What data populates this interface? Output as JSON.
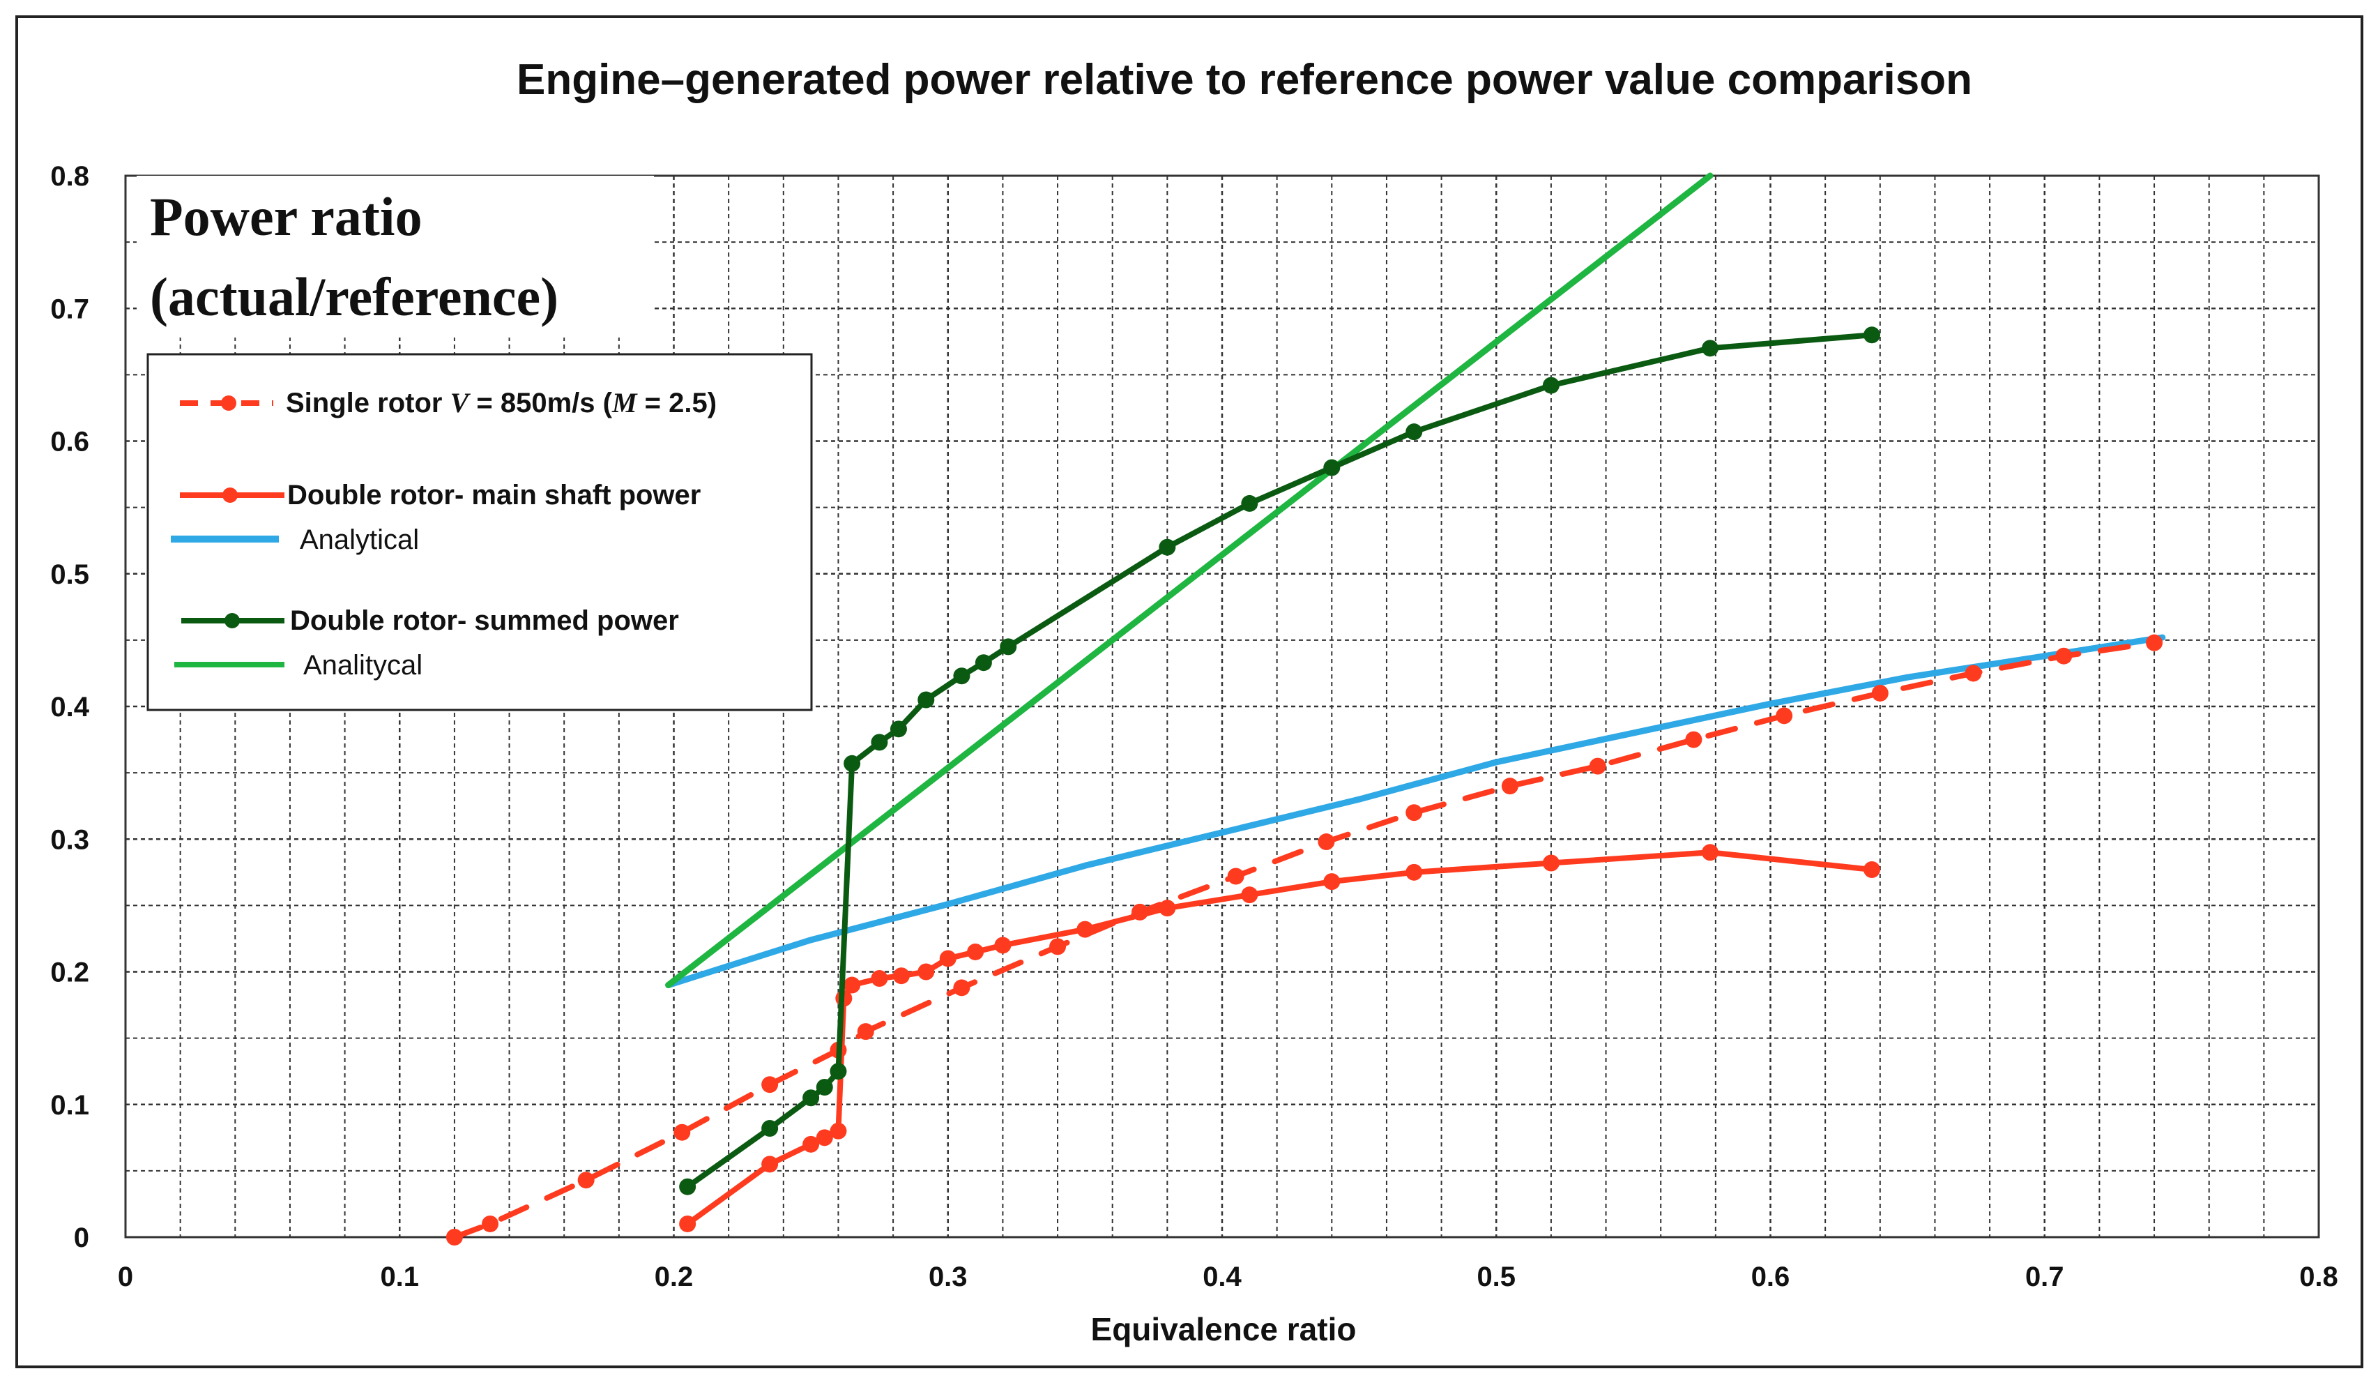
{
  "chart_data": {
    "type": "line",
    "title": "Engine–generated power relative to reference power value comparison",
    "xlabel": "Equivalence ratio",
    "ylabel_lines": [
      "Power ratio",
      "(actual/reference)"
    ],
    "xlim": [
      0,
      0.8
    ],
    "ylim": [
      0,
      0.8
    ],
    "xticks": [
      "0",
      "0.1",
      "0.2",
      "0.3",
      "0.4",
      "0.5",
      "0.6",
      "0.7",
      "0.8"
    ],
    "yticks": [
      "0",
      "0.1",
      "0.2",
      "0.3",
      "0.4",
      "0.5",
      "0.6",
      "0.7",
      "0.8"
    ],
    "grid": true,
    "legend_position": "upper-left",
    "series": [
      {
        "name": "Single rotor V = 850m/s (M = 2.5)",
        "legend_parts": [
          "Single rotor ",
          "V",
          " = 850m/s (",
          "M",
          " = 2.5)"
        ],
        "color": "#ff3b1f",
        "style": "dashed",
        "markers": true,
        "x": [
          0.12,
          0.133,
          0.168,
          0.203,
          0.235,
          0.26,
          0.27,
          0.305,
          0.34,
          0.37,
          0.405,
          0.438,
          0.47,
          0.505,
          0.537,
          0.572,
          0.605,
          0.64,
          0.674,
          0.707,
          0.74
        ],
        "y": [
          0.0,
          0.01,
          0.043,
          0.079,
          0.115,
          0.141,
          0.155,
          0.188,
          0.219,
          0.245,
          0.272,
          0.298,
          0.32,
          0.34,
          0.355,
          0.375,
          0.393,
          0.41,
          0.425,
          0.438,
          0.448
        ]
      },
      {
        "name": "Double rotor- main shaft power",
        "color": "#ff3b1f",
        "style": "solid",
        "markers": true,
        "x": [
          0.205,
          0.235,
          0.25,
          0.255,
          0.26,
          0.262,
          0.265,
          0.275,
          0.283,
          0.292,
          0.3,
          0.31,
          0.32,
          0.35,
          0.38,
          0.41,
          0.44,
          0.47,
          0.52,
          0.578,
          0.637
        ],
        "y": [
          0.01,
          0.055,
          0.07,
          0.075,
          0.08,
          0.18,
          0.19,
          0.195,
          0.197,
          0.2,
          0.21,
          0.215,
          0.22,
          0.232,
          0.248,
          0.258,
          0.268,
          0.275,
          0.282,
          0.29,
          0.277
        ]
      },
      {
        "name": "Analytical",
        "color": "#2fa8e6",
        "style": "solid",
        "markers": false,
        "x": [
          0.198,
          0.25,
          0.3,
          0.35,
          0.4,
          0.45,
          0.5,
          0.55,
          0.6,
          0.65,
          0.7,
          0.743
        ],
        "y": [
          0.19,
          0.224,
          0.251,
          0.28,
          0.305,
          0.33,
          0.358,
          0.38,
          0.402,
          0.422,
          0.438,
          0.452
        ]
      },
      {
        "name": "Double rotor- summed power",
        "color": "#0b5a12",
        "style": "solid",
        "markers": true,
        "x": [
          0.205,
          0.235,
          0.25,
          0.255,
          0.26,
          0.265,
          0.275,
          0.282,
          0.292,
          0.305,
          0.313,
          0.322,
          0.38,
          0.41,
          0.44,
          0.47,
          0.52,
          0.578,
          0.637
        ],
        "y": [
          0.038,
          0.082,
          0.105,
          0.113,
          0.125,
          0.357,
          0.373,
          0.383,
          0.405,
          0.423,
          0.433,
          0.445,
          0.52,
          0.553,
          0.58,
          0.607,
          0.642,
          0.67,
          0.68
        ]
      },
      {
        "name": "Analitycal",
        "color": "#1fb541",
        "style": "solid",
        "markers": false,
        "x": [
          0.198,
          0.578
        ],
        "y": [
          0.19,
          0.8
        ]
      }
    ]
  }
}
